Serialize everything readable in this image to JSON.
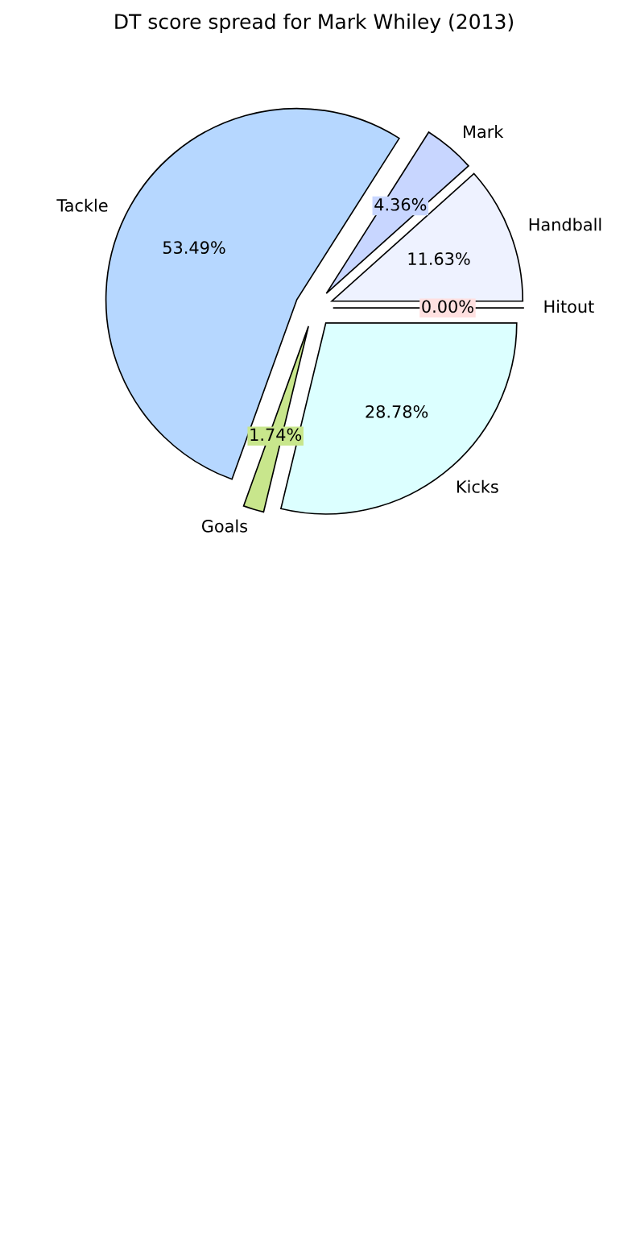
{
  "chart_data": {
    "type": "pie",
    "title": "DT score spread for Mark Whiley (2013)",
    "categories": [
      "Hitout",
      "Handball",
      "Mark",
      "Tackle",
      "Goals",
      "Kicks"
    ],
    "values": [
      0.0,
      11.63,
      4.36,
      53.49,
      1.74,
      28.78
    ],
    "value_labels": [
      "0.00%",
      "11.63%",
      "4.36%",
      "53.49%",
      "1.74%",
      "28.78%"
    ],
    "colors": [
      "#ffe0e0",
      "#eef2ff",
      "#c8d6ff",
      "#b6d7ff",
      "#c8e68c",
      "#dcffff"
    ]
  }
}
